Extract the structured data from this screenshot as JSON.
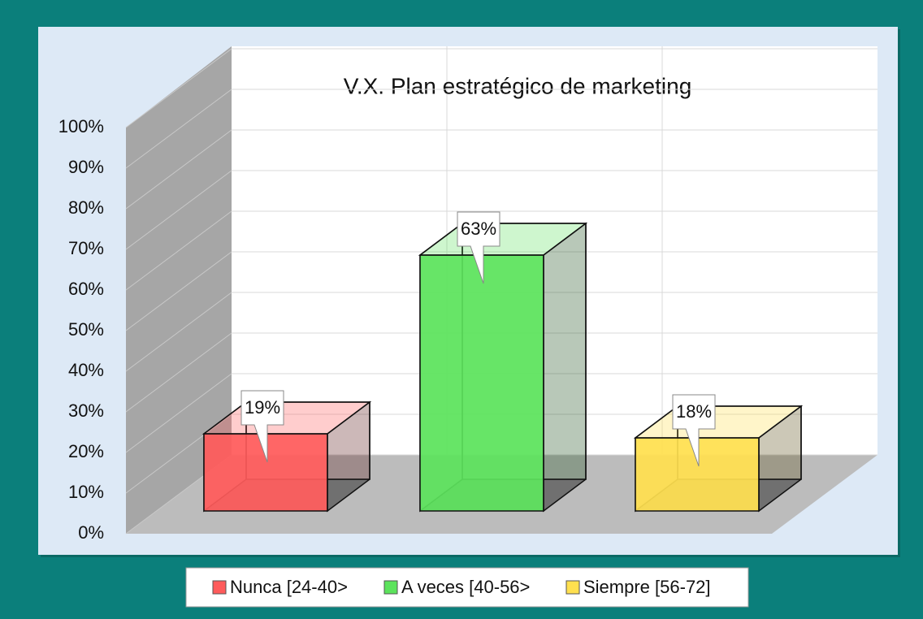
{
  "chart_data": {
    "type": "bar3d",
    "title": "V.X. Plan estratégico de marketing",
    "categories": [
      "Nunca [24-40>",
      "A veces [40-56>",
      "Siempre [56-72]"
    ],
    "values": [
      19,
      63,
      18
    ],
    "value_labels": [
      "19%",
      "63%",
      "18%"
    ],
    "colors": [
      "#ff5b5b",
      "#5ce35c",
      "#ffe04f"
    ],
    "ylim": [
      0,
      100
    ],
    "yticks": [
      {
        "value": 0,
        "label": "0%"
      },
      {
        "value": 10,
        "label": "10%"
      },
      {
        "value": 20,
        "label": "20%"
      },
      {
        "value": 30,
        "label": "30%"
      },
      {
        "value": 40,
        "label": "40%"
      },
      {
        "value": 50,
        "label": "50%"
      },
      {
        "value": 60,
        "label": "60%"
      },
      {
        "value": 70,
        "label": "70%"
      },
      {
        "value": 80,
        "label": "80%"
      },
      {
        "value": 90,
        "label": "90%"
      },
      {
        "value": 100,
        "label": "100%"
      }
    ],
    "grid": true,
    "legend": "bottom"
  }
}
